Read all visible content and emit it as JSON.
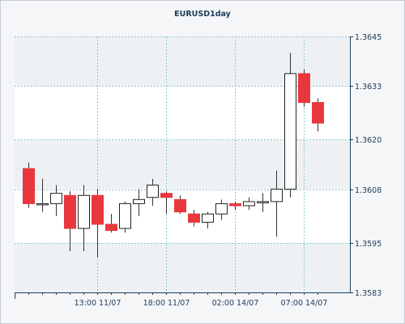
{
  "chart_data": {
    "type": "candlestick",
    "title": "EURUSD1day",
    "xlabel": "",
    "ylabel": "",
    "ylim": [
      1.3583,
      1.3645
    ],
    "y_ticks": [
      "1.3645",
      "1.3633",
      "1.3620",
      "1.3608",
      "1.3595",
      "1.3583"
    ],
    "x_tick_labels": [
      "13:00 11/07",
      "18:00 11/07",
      "02:00 14/07",
      "07:00 14/07"
    ],
    "x_tick_candle_index": [
      5,
      10,
      15,
      20
    ],
    "grid": true,
    "colors": {
      "up": "#ffffff",
      "down": "#e8383d",
      "wick": "#333333",
      "grid": "#8fc8c8",
      "axis": "#1e3c5a",
      "band": "#ffffff"
    },
    "candles": [
      {
        "open": 1.3613,
        "high": 1.36145,
        "low": 1.36035,
        "close": 1.36045
      },
      {
        "open": 1.36045,
        "high": 1.36105,
        "low": 1.36025,
        "close": 1.36045
      },
      {
        "open": 1.36045,
        "high": 1.3609,
        "low": 1.36015,
        "close": 1.3607
      },
      {
        "open": 1.36065,
        "high": 1.36075,
        "low": 1.3593,
        "close": 1.35985
      },
      {
        "open": 1.35985,
        "high": 1.3609,
        "low": 1.3593,
        "close": 1.36065
      },
      {
        "open": 1.36065,
        "high": 1.3608,
        "low": 1.35915,
        "close": 1.35995
      },
      {
        "open": 1.35995,
        "high": 1.3602,
        "low": 1.35975,
        "close": 1.3598
      },
      {
        "open": 1.35985,
        "high": 1.3605,
        "low": 1.35975,
        "close": 1.36045
      },
      {
        "open": 1.36045,
        "high": 1.3608,
        "low": 1.36015,
        "close": 1.36055
      },
      {
        "open": 1.3606,
        "high": 1.36105,
        "low": 1.3604,
        "close": 1.3609
      },
      {
        "open": 1.3607,
        "high": 1.36075,
        "low": 1.3602,
        "close": 1.3606
      },
      {
        "open": 1.36055,
        "high": 1.36065,
        "low": 1.3602,
        "close": 1.36025
      },
      {
        "open": 1.3602,
        "high": 1.3603,
        "low": 1.3599,
        "close": 1.36
      },
      {
        "open": 1.36,
        "high": 1.36025,
        "low": 1.35985,
        "close": 1.3602
      },
      {
        "open": 1.3602,
        "high": 1.36055,
        "low": 1.36005,
        "close": 1.36045
      },
      {
        "open": 1.36045,
        "high": 1.3605,
        "low": 1.3603,
        "close": 1.3604
      },
      {
        "open": 1.3604,
        "high": 1.3606,
        "low": 1.3603,
        "close": 1.3605
      },
      {
        "open": 1.3605,
        "high": 1.3607,
        "low": 1.36025,
        "close": 1.3605
      },
      {
        "open": 1.3605,
        "high": 1.36125,
        "low": 1.35965,
        "close": 1.3608
      },
      {
        "open": 1.3608,
        "high": 1.3641,
        "low": 1.3606,
        "close": 1.3636
      },
      {
        "open": 1.3636,
        "high": 1.3637,
        "low": 1.3628,
        "close": 1.3629
      },
      {
        "open": 1.3629,
        "high": 1.363,
        "low": 1.3622,
        "close": 1.3624
      }
    ]
  }
}
